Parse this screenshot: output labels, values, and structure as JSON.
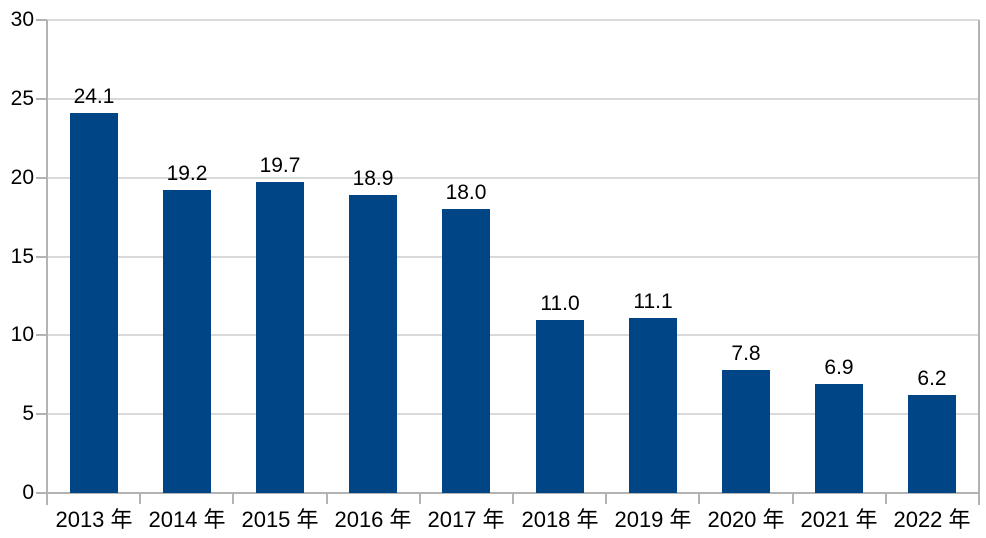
{
  "chart_data": {
    "type": "bar",
    "title": "",
    "xlabel": "",
    "ylabel": "",
    "categories": [
      "2013 年",
      "2014 年",
      "2015 年",
      "2016 年",
      "2017 年",
      "2018 年",
      "2019 年",
      "2020 年",
      "2021 年",
      "2022 年"
    ],
    "values": [
      24.1,
      19.2,
      19.7,
      18.9,
      18.0,
      11.0,
      11.1,
      7.8,
      6.9,
      6.2
    ],
    "data_labels": [
      "24.1",
      "19.2",
      "19.7",
      "18.9",
      "18.0",
      "11.0",
      "11.1",
      "7.8",
      "6.9",
      "6.2"
    ],
    "ylim": [
      0,
      30
    ],
    "ytick_step": 5,
    "ytick_labels": [
      "0",
      "5",
      "10",
      "15",
      "20",
      "25",
      "30"
    ],
    "grid": "horizontal-major",
    "legend": "none",
    "colors": {
      "bar": "#004586",
      "gridline": "#d9d9d9",
      "axis": "#b3b3b3",
      "text": "#000000",
      "background": "#ffffff"
    }
  }
}
